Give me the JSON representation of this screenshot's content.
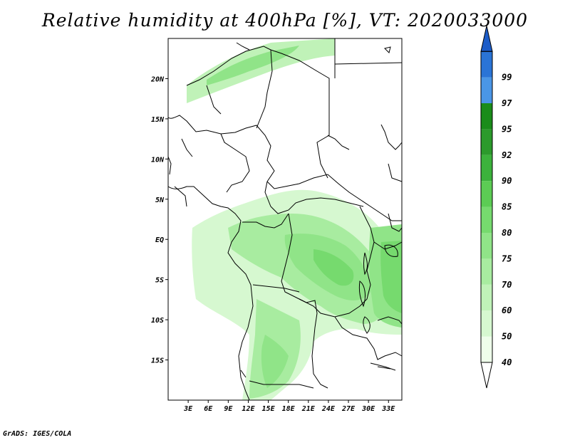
{
  "title": "Relative humidity at 400hPa [%], VT: 2020033000",
  "credit": "GrADS: IGES/COLA",
  "map": {
    "projection": "lat-lon",
    "lon_range": [
      0,
      35
    ],
    "lat_range": [
      -20,
      25
    ],
    "lat_ticks": [
      {
        "value": 20,
        "label": "20N"
      },
      {
        "value": 15,
        "label": "15N"
      },
      {
        "value": 10,
        "label": "10N"
      },
      {
        "value": 5,
        "label": "5N"
      },
      {
        "value": 0,
        "label": "EQ"
      },
      {
        "value": -5,
        "label": "5S"
      },
      {
        "value": -10,
        "label": "10S"
      },
      {
        "value": -15,
        "label": "15S"
      }
    ],
    "lon_ticks": [
      {
        "value": 3,
        "label": "3E"
      },
      {
        "value": 6,
        "label": "6E"
      },
      {
        "value": 9,
        "label": "9E"
      },
      {
        "value": 12,
        "label": "12E"
      },
      {
        "value": 15,
        "label": "15E"
      },
      {
        "value": 18,
        "label": "18E"
      },
      {
        "value": 21,
        "label": "21E"
      },
      {
        "value": 24,
        "label": "24E"
      },
      {
        "value": 27,
        "label": "27E"
      },
      {
        "value": 30,
        "label": "30E"
      },
      {
        "value": 33,
        "label": "33E"
      }
    ]
  },
  "colorbar": {
    "levels": [
      {
        "label": "40",
        "color": "#eefeea"
      },
      {
        "label": "50",
        "color": "#d6f8d0"
      },
      {
        "label": "60",
        "color": "#c0f2b8"
      },
      {
        "label": "70",
        "color": "#a8eca0"
      },
      {
        "label": "75",
        "color": "#90e488"
      },
      {
        "label": "80",
        "color": "#76da6e"
      },
      {
        "label": "85",
        "color": "#5ccc54"
      },
      {
        "label": "90",
        "color": "#3cb23c"
      },
      {
        "label": "92",
        "color": "#2c9a2c"
      },
      {
        "label": "95",
        "color": "#1a8c1a"
      },
      {
        "label": "97",
        "color": "#4a96e6"
      },
      {
        "label": "99",
        "color": "#2a74d6"
      }
    ],
    "min_color": "#ffffff",
    "max_color": "#1c5cc8"
  }
}
